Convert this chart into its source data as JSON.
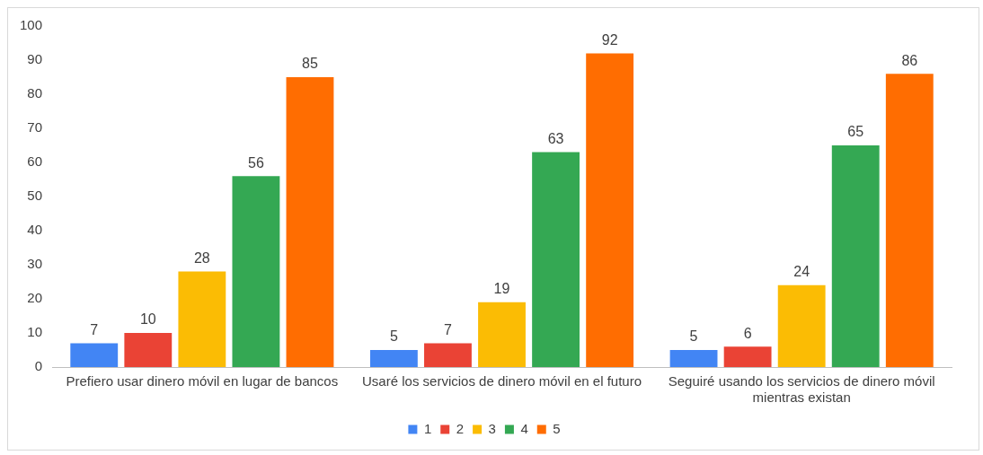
{
  "chart_data": {
    "type": "bar",
    "categories": [
      "Prefiero usar dinero móvil en lugar de bancos",
      "Usaré los servicios de dinero móvil en el futuro",
      "Seguiré usando los servicios de dinero móvil mientras existan"
    ],
    "series": [
      {
        "name": "1",
        "color": "#4285f4",
        "values": [
          7,
          5,
          5
        ]
      },
      {
        "name": "2",
        "color": "#ea4335",
        "values": [
          10,
          7,
          6
        ]
      },
      {
        "name": "3",
        "color": "#fbbc04",
        "values": [
          28,
          19,
          24
        ]
      },
      {
        "name": "4",
        "color": "#34a853",
        "values": [
          56,
          63,
          65
        ]
      },
      {
        "name": "5",
        "color": "#ff6d01",
        "values": [
          85,
          92,
          86
        ]
      }
    ],
    "ylim": [
      0,
      100
    ],
    "yticks": [
      0,
      10,
      20,
      30,
      40,
      50,
      60,
      70,
      80,
      90,
      100
    ],
    "grid": false,
    "legend": "bottom",
    "data_labels": true
  }
}
